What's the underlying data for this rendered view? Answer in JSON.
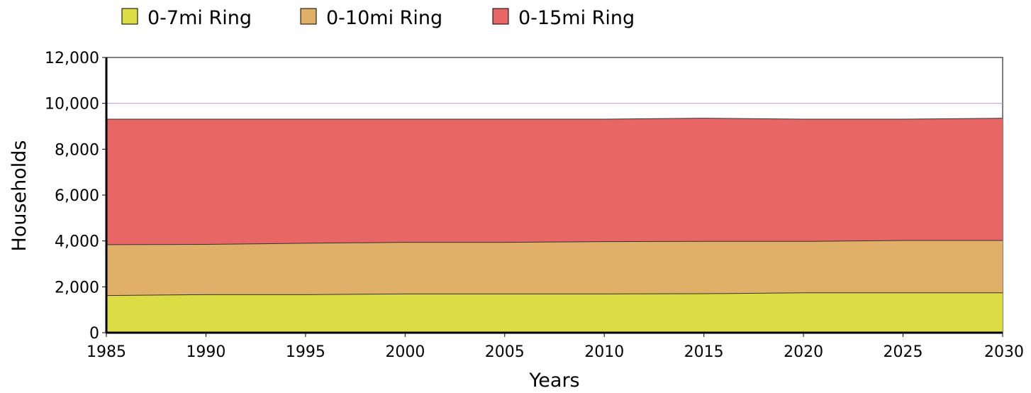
{
  "chart_data": {
    "type": "area",
    "stacked": true,
    "title": "",
    "xlabel": "Years",
    "ylabel": "Households",
    "x": [
      1985,
      1990,
      1995,
      2000,
      2005,
      2010,
      2015,
      2020,
      2025,
      2030
    ],
    "xlim": [
      1985,
      2030
    ],
    "ylim": [
      0,
      12000
    ],
    "xticks": [
      "1985",
      "1990",
      "1995",
      "2000",
      "2005",
      "2010",
      "2015",
      "2020",
      "2025",
      "2030"
    ],
    "yticks": [
      "0",
      "2,000",
      "4,000",
      "6,000",
      "8,000",
      "10,000",
      "12,000"
    ],
    "series": [
      {
        "name": "0-7mi Ring",
        "color": "#dcdc44",
        "values": [
          1620,
          1660,
          1660,
          1690,
          1690,
          1690,
          1700,
          1740,
          1740,
          1740
        ]
      },
      {
        "name": "0-10mi Ring",
        "color": "#e0b068",
        "values": [
          3840,
          3850,
          3900,
          3940,
          3940,
          3970,
          3980,
          3980,
          4020,
          4020
        ]
      },
      {
        "name": "0-15mi Ring",
        "color": "#e96666",
        "values": [
          9310,
          9310,
          9310,
          9310,
          9310,
          9310,
          9350,
          9310,
          9310,
          9350
        ]
      }
    ],
    "reference_line": {
      "y": 10000,
      "color": "#c8a0e0"
    },
    "grid": false,
    "legend_position": "top-left"
  }
}
